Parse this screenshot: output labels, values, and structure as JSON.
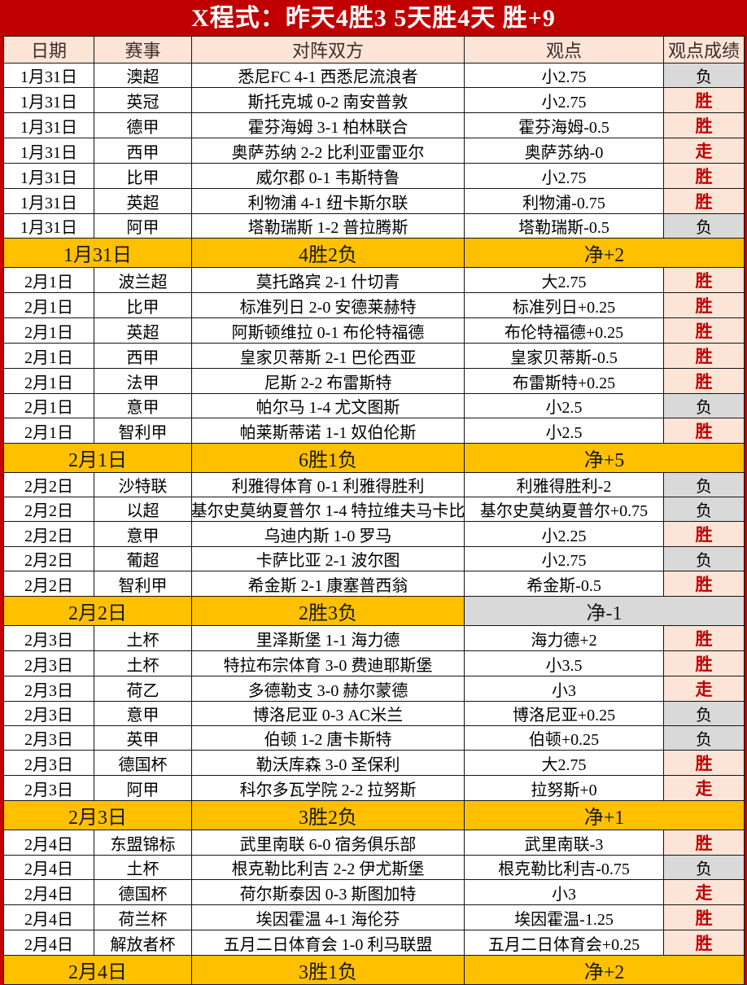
{
  "title": "X程式：昨天4胜3 5天胜4天 胜+9",
  "columns": {
    "date": "日期",
    "league": "赛事",
    "match": "对阵双方",
    "view": "观点",
    "result": "观点成绩"
  },
  "result_legend": {
    "win": "胜",
    "loss": "负",
    "push": "走"
  },
  "colors": {
    "page_red": "#c00000",
    "title_text": "#ffffff",
    "header_fill": "#fce4d6",
    "win_fill": "#fce4d6",
    "win_text": "#c00000",
    "loss_fill": "#d9d9d9",
    "summary_fill": "#ffc000",
    "grid_line": "#141414"
  },
  "sections": [
    {
      "rows": [
        {
          "date": "1月31日",
          "league": "澳超",
          "match": "悉尼FC 4-1 西悉尼流浪者",
          "view": "小2.75",
          "result": "负"
        },
        {
          "date": "1月31日",
          "league": "英冠",
          "match": "斯托克城 0-2 南安普敦",
          "view": "小2.75",
          "result": "胜"
        },
        {
          "date": "1月31日",
          "league": "德甲",
          "match": "霍芬海姆 3-1 柏林联合",
          "view": "霍芬海姆-0.5",
          "result": "胜"
        },
        {
          "date": "1月31日",
          "league": "西甲",
          "match": "奥萨苏纳 2-2 比利亚雷亚尔",
          "view": "奥萨苏纳-0",
          "result": "走"
        },
        {
          "date": "1月31日",
          "league": "比甲",
          "match": "威尔郡 0-1 韦斯特鲁",
          "view": "小2.75",
          "result": "胜"
        },
        {
          "date": "1月31日",
          "league": "英超",
          "match": "利物浦 4-1 纽卡斯尔联",
          "view": "利物浦-0.75",
          "result": "胜"
        },
        {
          "date": "1月31日",
          "league": "阿甲",
          "match": "塔勒瑞斯 1-2 普拉腾斯",
          "view": "塔勒瑞斯-0.5",
          "result": "负"
        }
      ],
      "summary": {
        "date": "1月31日",
        "record": "4胜2负",
        "net": "净+2",
        "net_negative": false
      }
    },
    {
      "rows": [
        {
          "date": "2月1日",
          "league": "波兰超",
          "match": "莫托路宾 2-1 什切青",
          "view": "大2.75",
          "result": "胜"
        },
        {
          "date": "2月1日",
          "league": "比甲",
          "match": "标准列日 2-0 安德莱赫特",
          "view": "标准列日+0.25",
          "result": "胜"
        },
        {
          "date": "2月1日",
          "league": "英超",
          "match": "阿斯顿维拉 0-1 布伦特福德",
          "view": "布伦特福德+0.25",
          "result": "胜"
        },
        {
          "date": "2月1日",
          "league": "西甲",
          "match": "皇家贝蒂斯 2-1 巴伦西亚",
          "view": "皇家贝蒂斯-0.5",
          "result": "胜"
        },
        {
          "date": "2月1日",
          "league": "法甲",
          "match": "尼斯 2-2 布雷斯特",
          "view": "布雷斯特+0.25",
          "result": "胜"
        },
        {
          "date": "2月1日",
          "league": "意甲",
          "match": "帕尔马 1-4 尤文图斯",
          "view": "小2.5",
          "result": "负"
        },
        {
          "date": "2月1日",
          "league": "智利甲",
          "match": "帕莱斯蒂诺 1-1 奴伯伦斯",
          "view": "小2.5",
          "result": "胜"
        }
      ],
      "summary": {
        "date": "2月1日",
        "record": "6胜1负",
        "net": "净+5",
        "net_negative": false
      }
    },
    {
      "rows": [
        {
          "date": "2月2日",
          "league": "沙特联",
          "match": "利雅得体育 0-1 利雅得胜利",
          "view": "利雅得胜利-2",
          "result": "负"
        },
        {
          "date": "2月2日",
          "league": "以超",
          "match": "基尔史莫纳夏普尔 1-4 特拉维夫马卡比",
          "view": "基尔史莫纳夏普尔+0.75",
          "result": "负"
        },
        {
          "date": "2月2日",
          "league": "意甲",
          "match": "乌迪内斯 1-0 罗马",
          "view": "小2.25",
          "result": "胜"
        },
        {
          "date": "2月2日",
          "league": "葡超",
          "match": "卡萨比亚 2-1 波尔图",
          "view": "小2.75",
          "result": "负"
        },
        {
          "date": "2月2日",
          "league": "智利甲",
          "match": "希金斯 2-1 康塞普西翁",
          "view": "希金斯-0.5",
          "result": "胜"
        }
      ],
      "summary": {
        "date": "2月2日",
        "record": "2胜3负",
        "net": "净-1",
        "net_negative": true
      }
    },
    {
      "rows": [
        {
          "date": "2月3日",
          "league": "土杯",
          "match": "里泽斯堡 1-1 海力德",
          "view": "海力德+2",
          "result": "胜"
        },
        {
          "date": "2月3日",
          "league": "土杯",
          "match": "特拉布宗体育 3-0 费迪耶斯堡",
          "view": "小3.5",
          "result": "胜"
        },
        {
          "date": "2月3日",
          "league": "荷乙",
          "match": "多德勒支 3-0 赫尔蒙德",
          "view": "小3",
          "result": "走"
        },
        {
          "date": "2月3日",
          "league": "意甲",
          "match": "博洛尼亚 0-3 AC米兰",
          "view": "博洛尼亚+0.25",
          "result": "负"
        },
        {
          "date": "2月3日",
          "league": "英甲",
          "match": "伯顿 1-2 唐卡斯特",
          "view": "伯顿+0.25",
          "result": "负"
        },
        {
          "date": "2月3日",
          "league": "德国杯",
          "match": "勒沃库森 3-0 圣保利",
          "view": "大2.75",
          "result": "胜"
        },
        {
          "date": "2月3日",
          "league": "阿甲",
          "match": "科尔多瓦学院 2-2 拉努斯",
          "view": "拉努斯+0",
          "result": "走"
        }
      ],
      "summary": {
        "date": "2月3日",
        "record": "3胜2负",
        "net": "净+1",
        "net_negative": false
      }
    },
    {
      "rows": [
        {
          "date": "2月4日",
          "league": "东盟锦标",
          "match": "武里南联 6-0 宿务俱乐部",
          "view": "武里南联-3",
          "result": "胜"
        },
        {
          "date": "2月4日",
          "league": "土杯",
          "match": "根克勒比利吉 2-2 伊尤斯堡",
          "view": "根克勒比利吉-0.75",
          "result": "负"
        },
        {
          "date": "2月4日",
          "league": "德国杯",
          "match": "荷尔斯泰因 0-3 斯图加特",
          "view": "小3",
          "result": "走"
        },
        {
          "date": "2月4日",
          "league": "荷兰杯",
          "match": "埃因霍温 4-1 海伦芬",
          "view": "埃因霍温-1.25",
          "result": "胜"
        },
        {
          "date": "2月4日",
          "league": "解放者杯",
          "match": "五月二日体育会 1-0 利马联盟",
          "view": "五月二日体育会+0.25",
          "result": "胜"
        }
      ],
      "summary": {
        "date": "2月4日",
        "record": "3胜1负",
        "net": "净+2",
        "net_negative": false
      }
    }
  ]
}
